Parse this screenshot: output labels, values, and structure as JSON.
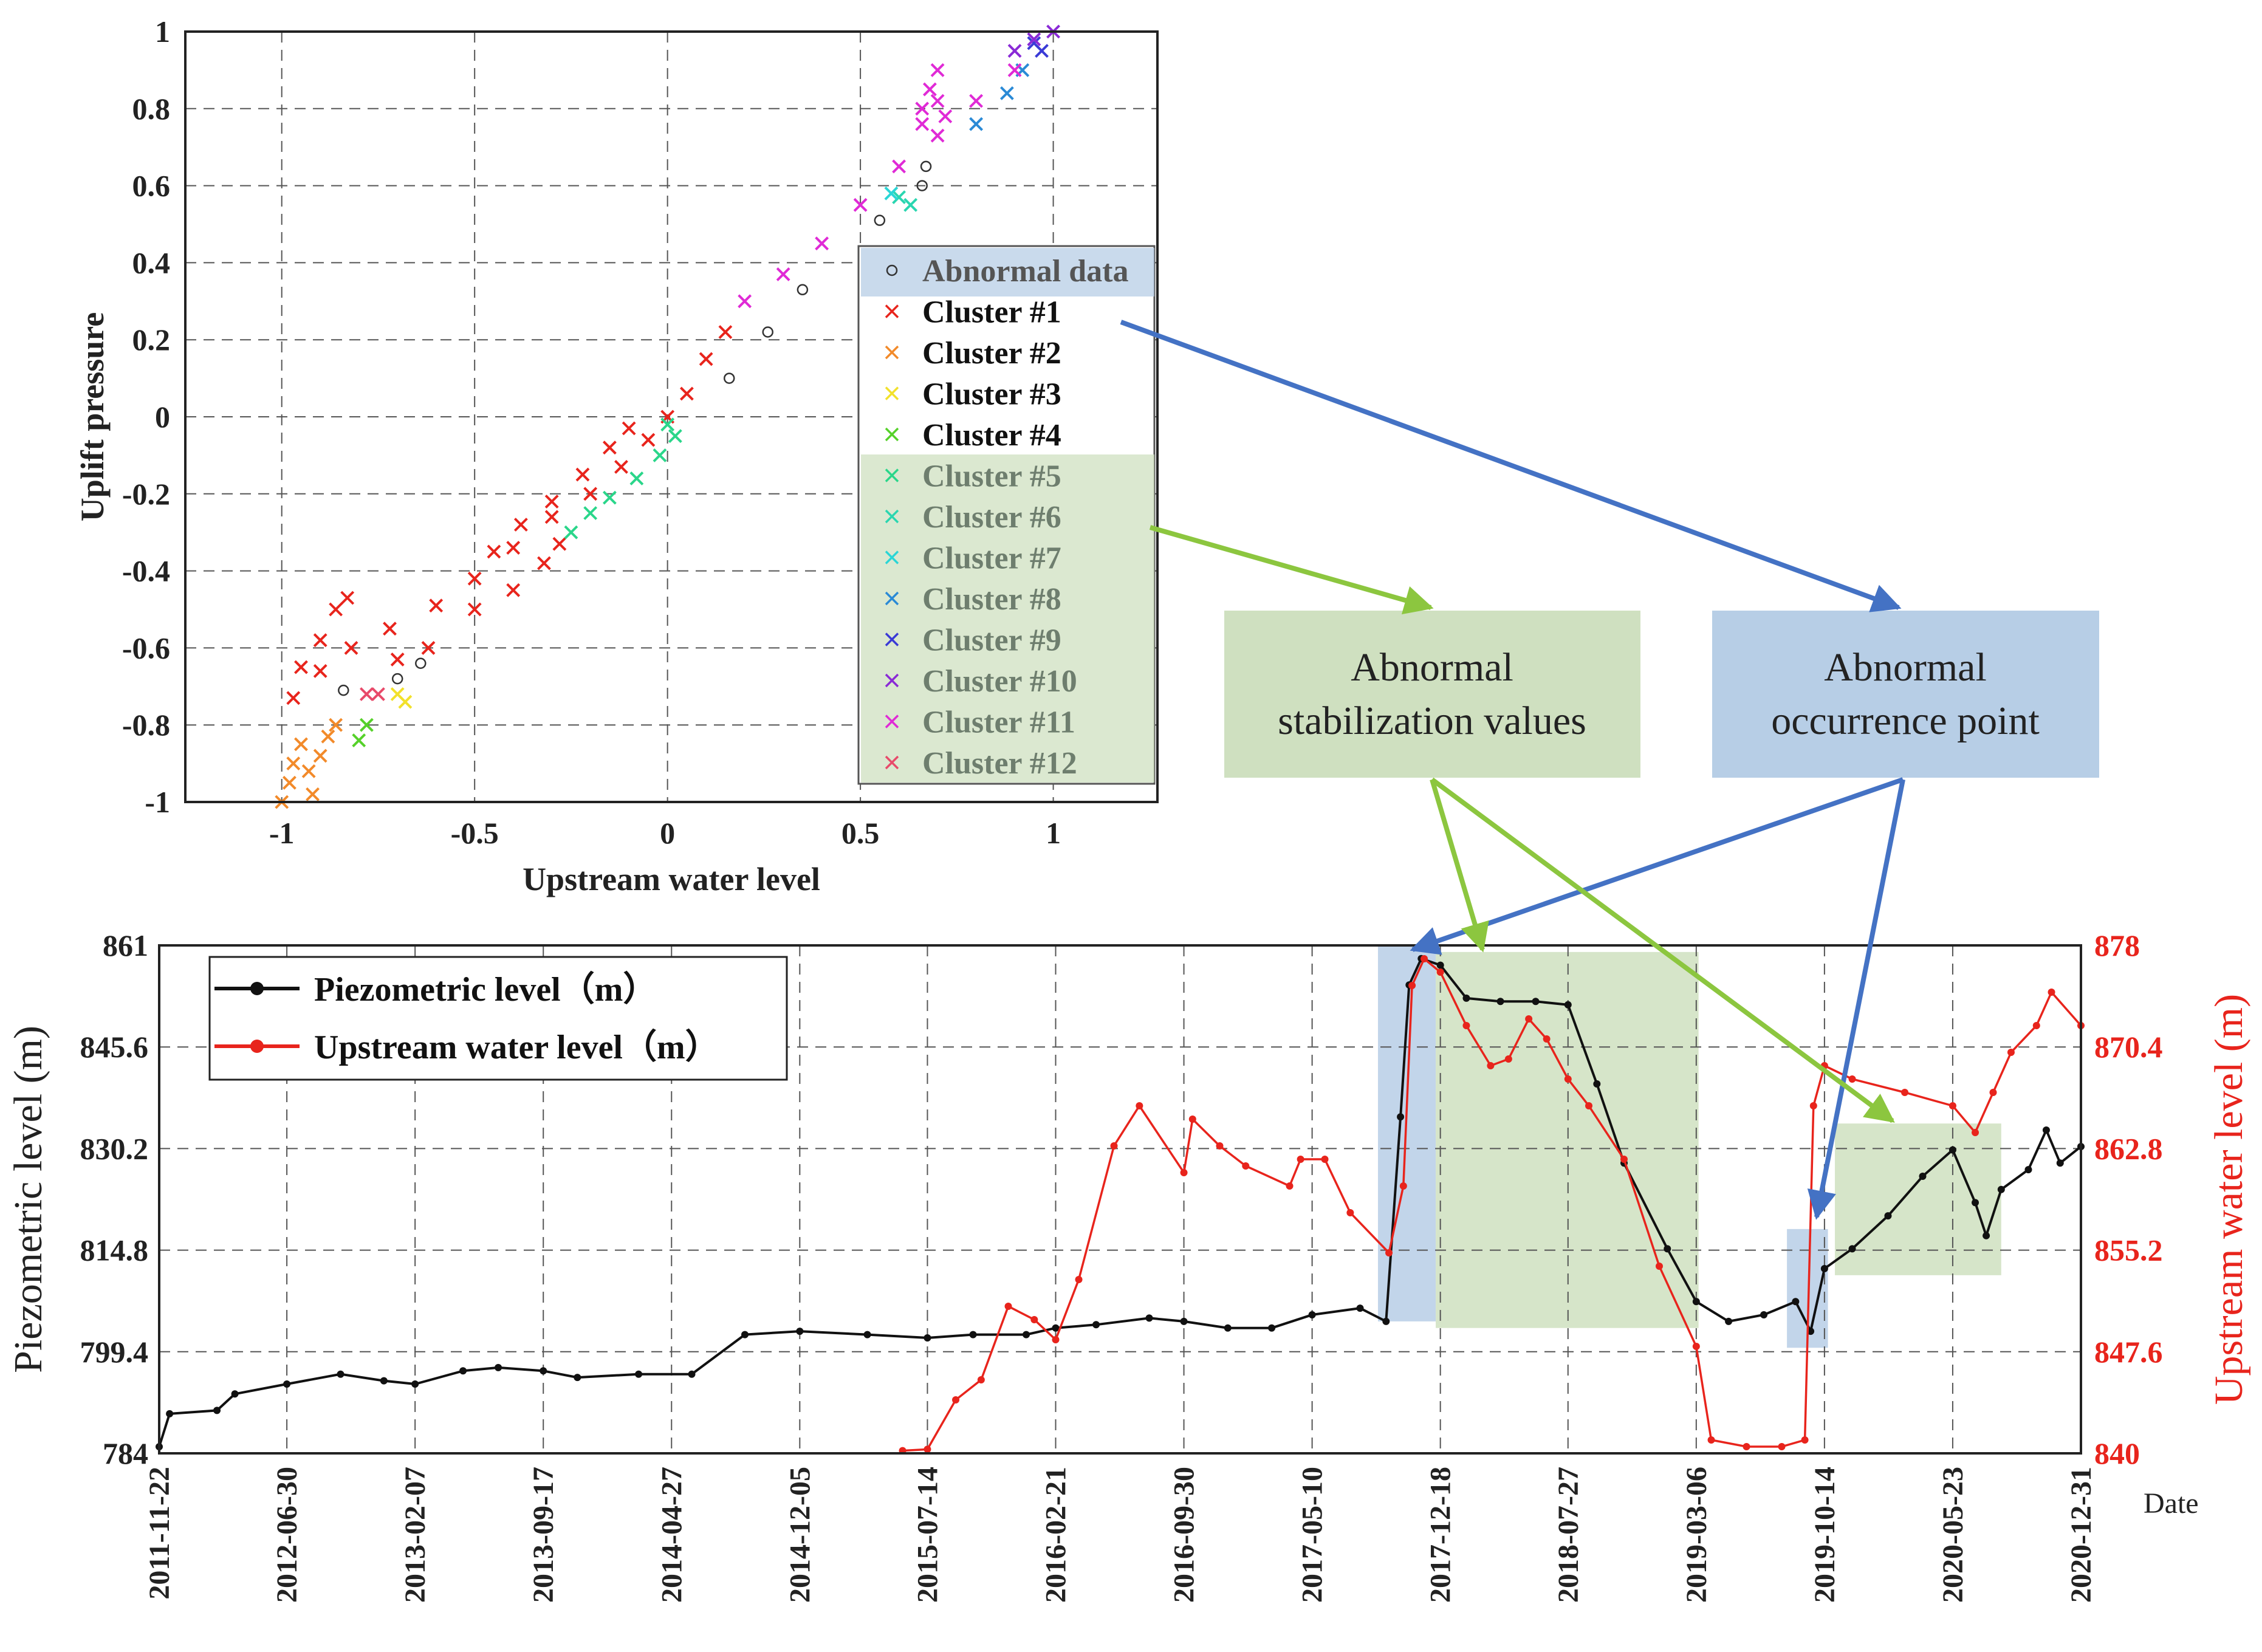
{
  "chart_data": [
    {
      "type": "scatter",
      "xlabel": "Upstream water level",
      "ylabel": "Uplift pressure",
      "xlim": [
        -1.25,
        1.27
      ],
      "ylim": [
        -1,
        1
      ],
      "xticks": [
        -1,
        -0.5,
        0,
        0.5,
        1
      ],
      "xtick_labels": [
        "-1",
        "-0.5",
        "0",
        "0.5",
        "1"
      ],
      "yticks": [
        -1,
        -0.8,
        -0.6,
        -0.4,
        -0.2,
        0,
        0.2,
        0.4,
        0.6,
        0.8,
        1
      ],
      "ytick_labels": [
        "-1",
        "-0.8",
        "-0.6",
        "-0.4",
        "-0.2",
        "0",
        "0.2",
        "0.4",
        "0.6",
        "0.8",
        "1"
      ],
      "grid": true,
      "legend_position": "right",
      "legend": [
        {
          "label": "Abnormal data",
          "marker": "o",
          "color": "#333333"
        },
        {
          "label": "Cluster #1",
          "marker": "x",
          "color": "#e8241c"
        },
        {
          "label": "Cluster #2",
          "marker": "x",
          "color": "#f28a2a"
        },
        {
          "label": "Cluster #3",
          "marker": "x",
          "color": "#f2e12b"
        },
        {
          "label": "Cluster #4",
          "marker": "x",
          "color": "#56d12a"
        },
        {
          "label": "Cluster #5",
          "marker": "x",
          "color": "#2ad68a"
        },
        {
          "label": "Cluster #6",
          "marker": "x",
          "color": "#2ad6b0"
        },
        {
          "label": "Cluster #7",
          "marker": "x",
          "color": "#2ad6d6"
        },
        {
          "label": "Cluster #8",
          "marker": "x",
          "color": "#2a8ad6"
        },
        {
          "label": "Cluster #9",
          "marker": "x",
          "color": "#3a3ad6"
        },
        {
          "label": "Cluster #10",
          "marker": "x",
          "color": "#8a2ad6"
        },
        {
          "label": "Cluster #11",
          "marker": "x",
          "color": "#e02ad6"
        },
        {
          "label": "Cluster #12",
          "marker": "x",
          "color": "#e84a6a"
        }
      ],
      "series": [
        {
          "name": "Cluster #1",
          "points": [
            [
              -0.97,
              -0.73
            ],
            [
              -0.9,
              -0.66
            ],
            [
              -0.82,
              -0.6
            ],
            [
              -0.72,
              -0.55
            ],
            [
              -0.6,
              -0.49
            ],
            [
              -0.5,
              -0.42
            ],
            [
              -0.4,
              -0.34
            ],
            [
              -0.3,
              -0.26
            ],
            [
              -0.2,
              -0.2
            ],
            [
              -0.12,
              -0.13
            ],
            [
              -0.05,
              -0.06
            ],
            [
              0.0,
              0.0
            ],
            [
              0.05,
              0.06
            ],
            [
              0.1,
              0.15
            ],
            [
              0.15,
              0.22
            ],
            [
              -0.95,
              -0.65
            ],
            [
              -0.9,
              -0.58
            ],
            [
              -0.86,
              -0.5
            ],
            [
              -0.83,
              -0.47
            ],
            [
              -0.7,
              -0.63
            ],
            [
              -0.62,
              -0.6
            ],
            [
              -0.5,
              -0.5
            ],
            [
              -0.4,
              -0.45
            ],
            [
              -0.32,
              -0.38
            ],
            [
              -0.28,
              -0.33
            ],
            [
              -0.45,
              -0.35
            ],
            [
              -0.38,
              -0.28
            ],
            [
              -0.3,
              -0.22
            ],
            [
              -0.22,
              -0.15
            ],
            [
              -0.15,
              -0.08
            ],
            [
              -0.1,
              -0.03
            ]
          ]
        },
        {
          "name": "Cluster #2",
          "points": [
            [
              -1.0,
              -1.0
            ],
            [
              -0.98,
              -0.95
            ],
            [
              -0.97,
              -0.9
            ],
            [
              -0.95,
              -0.85
            ],
            [
              -0.93,
              -0.92
            ],
            [
              -0.9,
              -0.88
            ],
            [
              -0.88,
              -0.83
            ],
            [
              -0.86,
              -0.8
            ],
            [
              -0.92,
              -0.98
            ]
          ]
        },
        {
          "name": "Cluster #3",
          "points": [
            [
              -0.7,
              -0.72
            ],
            [
              -0.68,
              -0.74
            ]
          ]
        },
        {
          "name": "Cluster #4",
          "points": [
            [
              -0.8,
              -0.84
            ],
            [
              -0.78,
              -0.8
            ]
          ]
        },
        {
          "name": "Cluster #5",
          "points": [
            [
              -0.25,
              -0.3
            ],
            [
              -0.2,
              -0.25
            ],
            [
              -0.15,
              -0.21
            ],
            [
              -0.08,
              -0.16
            ],
            [
              -0.02,
              -0.1
            ],
            [
              0.02,
              -0.05
            ],
            [
              0.0,
              -0.02
            ]
          ]
        },
        {
          "name": "Cluster #6",
          "points": [
            [
              0.6,
              0.57
            ],
            [
              0.63,
              0.55
            ]
          ]
        },
        {
          "name": "Cluster #7",
          "points": [
            [
              0.58,
              0.58
            ]
          ]
        },
        {
          "name": "Cluster #8",
          "points": [
            [
              0.8,
              0.76
            ],
            [
              0.88,
              0.84
            ],
            [
              0.92,
              0.9
            ]
          ]
        },
        {
          "name": "Cluster #9",
          "points": [
            [
              0.95,
              0.97
            ],
            [
              0.97,
              0.95
            ]
          ]
        },
        {
          "name": "Cluster #10",
          "points": [
            [
              0.9,
              0.95
            ],
            [
              0.95,
              0.98
            ],
            [
              1.0,
              1.0
            ]
          ]
        },
        {
          "name": "Cluster #11",
          "points": [
            [
              0.2,
              0.3
            ],
            [
              0.3,
              0.37
            ],
            [
              0.4,
              0.45
            ],
            [
              0.5,
              0.55
            ],
            [
              0.6,
              0.65
            ],
            [
              0.7,
              0.73
            ],
            [
              0.8,
              0.82
            ],
            [
              0.9,
              0.9
            ],
            [
              0.66,
              0.8
            ],
            [
              0.68,
              0.85
            ],
            [
              0.7,
              0.9
            ],
            [
              0.7,
              0.82
            ],
            [
              0.72,
              0.78
            ],
            [
              0.66,
              0.76
            ]
          ]
        },
        {
          "name": "Cluster #12",
          "points": [
            [
              -0.78,
              -0.72
            ],
            [
              -0.75,
              -0.72
            ]
          ]
        },
        {
          "name": "Abnormal data",
          "points": [
            [
              -0.84,
              -0.71
            ],
            [
              -0.7,
              -0.68
            ],
            [
              -0.64,
              -0.64
            ],
            [
              0.16,
              0.1
            ],
            [
              0.26,
              0.22
            ],
            [
              0.35,
              0.33
            ],
            [
              0.55,
              0.51
            ],
            [
              0.66,
              0.6
            ],
            [
              0.67,
              0.65
            ]
          ]
        }
      ]
    },
    {
      "type": "line",
      "xlabel": "Date",
      "ylabel_left": "Piezometric level (m)",
      "ylabel_right": "Upstream water level (m)",
      "xlim": [
        "2011-11-22",
        "2020-12-31"
      ],
      "xtick_labels": [
        "2011-11-22",
        "2012-06-30",
        "2013-02-07",
        "2013-09-17",
        "2014-04-27",
        "2014-12-05",
        "2015-07-14",
        "2016-02-21",
        "2016-09-30",
        "2017-05-10",
        "2017-12-18",
        "2018-07-27",
        "2019-03-06",
        "2019-10-14",
        "2020-05-23",
        "2020-12-31"
      ],
      "ylim_left": [
        784,
        861
      ],
      "ylim_right": [
        840,
        878
      ],
      "yticks_left": [
        "784",
        "799.4",
        "814.8",
        "830.2",
        "845.6",
        "861"
      ],
      "yticks_right": [
        "840",
        "847.6",
        "855.2",
        "862.8",
        "870.4",
        "878"
      ],
      "grid": true,
      "legend_position": "top-left",
      "series": [
        {
          "name": "Piezometric level（m）",
          "axis": "left",
          "color": "#111111",
          "points": [
            [
              "2011-11-22",
              785
            ],
            [
              "2011-12-10",
              790
            ],
            [
              "2012-03-01",
              790.5
            ],
            [
              "2012-04-01",
              793
            ],
            [
              "2012-06-30",
              794.5
            ],
            [
              "2012-10-01",
              796
            ],
            [
              "2012-12-15",
              795
            ],
            [
              "2013-02-07",
              794.5
            ],
            [
              "2013-05-01",
              796.5
            ],
            [
              "2013-07-01",
              797
            ],
            [
              "2013-09-17",
              796.5
            ],
            [
              "2013-11-15",
              795.5
            ],
            [
              "2014-03-01",
              796
            ],
            [
              "2014-06-01",
              796
            ],
            [
              "2014-09-01",
              802
            ],
            [
              "2014-12-05",
              802.5
            ],
            [
              "2015-04-01",
              802
            ],
            [
              "2015-07-14",
              801.5
            ],
            [
              "2015-10-01",
              802
            ],
            [
              "2016-01-01",
              802
            ],
            [
              "2016-02-21",
              803
            ],
            [
              "2016-05-01",
              803.5
            ],
            [
              "2016-08-01",
              804.5
            ],
            [
              "2016-09-30",
              804
            ],
            [
              "2016-12-15",
              803
            ],
            [
              "2017-03-01",
              803
            ],
            [
              "2017-05-10",
              805
            ],
            [
              "2017-08-01",
              806
            ],
            [
              "2017-09-15",
              804
            ],
            [
              "2017-10-10",
              835
            ],
            [
              "2017-10-25",
              855
            ],
            [
              "2017-11-15",
              859
            ],
            [
              "2017-12-18",
              858
            ],
            [
              "2018-02-01",
              853
            ],
            [
              "2018-04-01",
              852.5
            ],
            [
              "2018-06-01",
              852.5
            ],
            [
              "2018-07-27",
              852
            ],
            [
              "2018-09-15",
              840
            ],
            [
              "2018-11-01",
              828
            ],
            [
              "2019-01-15",
              815
            ],
            [
              "2019-03-06",
              807
            ],
            [
              "2019-05-01",
              804
            ],
            [
              "2019-07-01",
              805
            ],
            [
              "2019-08-25",
              807
            ],
            [
              "2019-09-20",
              802.5
            ],
            [
              "2019-10-14",
              812
            ],
            [
              "2019-12-01",
              815
            ],
            [
              "2020-02-01",
              820
            ],
            [
              "2020-04-01",
              826
            ],
            [
              "2020-05-23",
              830
            ],
            [
              "2020-07-01",
              822
            ],
            [
              "2020-07-20",
              817
            ],
            [
              "2020-08-15",
              824
            ],
            [
              "2020-10-01",
              827
            ],
            [
              "2020-11-01",
              833
            ],
            [
              "2020-11-25",
              828
            ],
            [
              "2020-12-31",
              830.5
            ]
          ]
        },
        {
          "name": "Upstream water level（m）",
          "axis": "right",
          "color": "#e8241c",
          "points": [
            [
              "2015-06-01",
              840.2
            ],
            [
              "2015-07-14",
              840.3
            ],
            [
              "2015-09-01",
              844
            ],
            [
              "2015-10-15",
              845.5
            ],
            [
              "2015-12-01",
              851
            ],
            [
              "2016-01-15",
              850
            ],
            [
              "2016-02-21",
              848.5
            ],
            [
              "2016-04-01",
              853
            ],
            [
              "2016-06-01",
              863
            ],
            [
              "2016-07-15",
              866
            ],
            [
              "2016-09-30",
              861
            ],
            [
              "2016-10-15",
              865
            ],
            [
              "2016-12-01",
              863
            ],
            [
              "2017-01-15",
              861.5
            ],
            [
              "2017-04-01",
              860
            ],
            [
              "2017-04-20",
              862
            ],
            [
              "2017-06-01",
              862
            ],
            [
              "2017-07-15",
              858
            ],
            [
              "2017-09-20",
              855
            ],
            [
              "2017-10-15",
              860
            ],
            [
              "2017-10-30",
              875
            ],
            [
              "2017-11-20",
              877
            ],
            [
              "2017-12-18",
              876
            ],
            [
              "2018-02-01",
              872
            ],
            [
              "2018-03-15",
              869
            ],
            [
              "2018-04-15",
              869.5
            ],
            [
              "2018-05-20",
              872.5
            ],
            [
              "2018-06-20",
              871
            ],
            [
              "2018-07-27",
              868
            ],
            [
              "2018-09-01",
              866
            ],
            [
              "2018-11-01",
              862
            ],
            [
              "2019-01-01",
              854
            ],
            [
              "2019-03-06",
              848
            ],
            [
              "2019-04-01",
              841
            ],
            [
              "2019-06-01",
              840.5
            ],
            [
              "2019-08-01",
              840.5
            ],
            [
              "2019-09-10",
              841
            ],
            [
              "2019-09-25",
              866
            ],
            [
              "2019-10-14",
              869
            ],
            [
              "2019-12-01",
              868
            ],
            [
              "2020-03-01",
              867
            ],
            [
              "2020-05-23",
              866
            ],
            [
              "2020-07-01",
              864
            ],
            [
              "2020-08-01",
              867
            ],
            [
              "2020-09-01",
              870
            ],
            [
              "2020-10-15",
              872
            ],
            [
              "2020-11-10",
              874.5
            ],
            [
              "2020-12-31",
              872
            ]
          ]
        }
      ],
      "highlights": [
        {
          "kind": "occurrence",
          "from": "2017-09-01",
          "to": "2017-12-10",
          "low": 804,
          "high": 861
        },
        {
          "kind": "stabilization",
          "from": "2017-12-10",
          "to": "2019-03-10",
          "low": 803,
          "high": 860
        },
        {
          "kind": "occurrence",
          "from": "2019-08-10",
          "to": "2019-10-20",
          "low": 800,
          "high": 818
        },
        {
          "kind": "stabilization",
          "from": "2019-11-01",
          "to": "2020-08-15",
          "low": 811,
          "high": 834
        }
      ]
    }
  ],
  "annotations": {
    "stabilization_text": [
      "Abnormal",
      "stabilization values"
    ],
    "occurrence_text": [
      "Abnormal",
      "occurrence point"
    ]
  },
  "colors": {
    "occurrence_fill": "#b7cee6",
    "stabilization_fill": "#cfe0c0",
    "arrow_blue": "#4472c4",
    "arrow_green": "#8cc63f",
    "red": "#e8241c"
  }
}
